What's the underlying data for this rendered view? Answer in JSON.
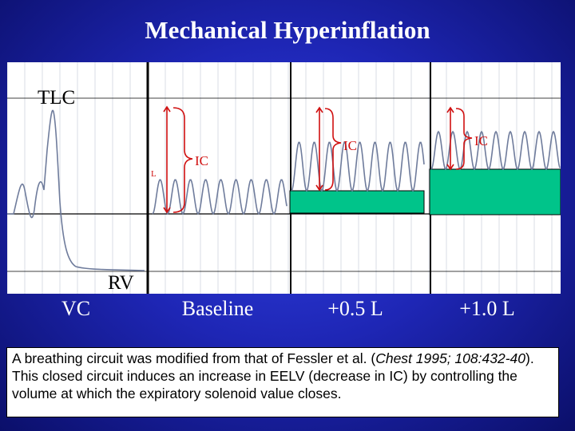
{
  "title": "Mechanical Hyperinflation",
  "panel": {
    "tlc_label": "TLC",
    "rv_label": "RV",
    "ic_label": "IC",
    "small_label": "L"
  },
  "segments": [
    "VC",
    "Baseline",
    "+0.5 L",
    "+1.0 L"
  ],
  "caption": {
    "part1": "A breathing circuit was modified from that of Fessler et al. (",
    "citation": "Chest 1995; 108:432-40",
    "part2": "). This closed circuit induces an increase in EELV (decrease in IC) by controlling the volume at which the expiratory solenoid value closes."
  },
  "colors": {
    "background": "#1e26b5",
    "trace": "#6f7c9c",
    "grid": "#c8d0dc",
    "fill": "#00c48a",
    "bracket": "#d01010"
  }
}
